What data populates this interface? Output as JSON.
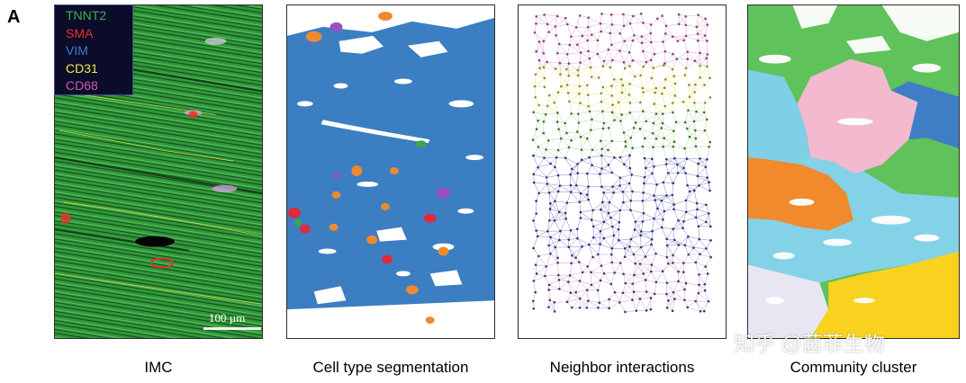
{
  "figure": {
    "panel_letter": "A",
    "legend": [
      {
        "label": "TNNT2",
        "color": "#3fb34a"
      },
      {
        "label": "SMA",
        "color": "#e8332c"
      },
      {
        "label": "VIM",
        "color": "#3f7ecf"
      },
      {
        "label": "CD31",
        "color": "#f4e94a"
      },
      {
        "label": "CD68",
        "color": "#cf5bb7"
      }
    ],
    "scale_bar": "100 µm",
    "captions": [
      "IMC",
      "Cell type segmentation",
      "Neighbor interactions",
      "Community cluster"
    ],
    "watermark": "知乎 @茵菲生物"
  }
}
